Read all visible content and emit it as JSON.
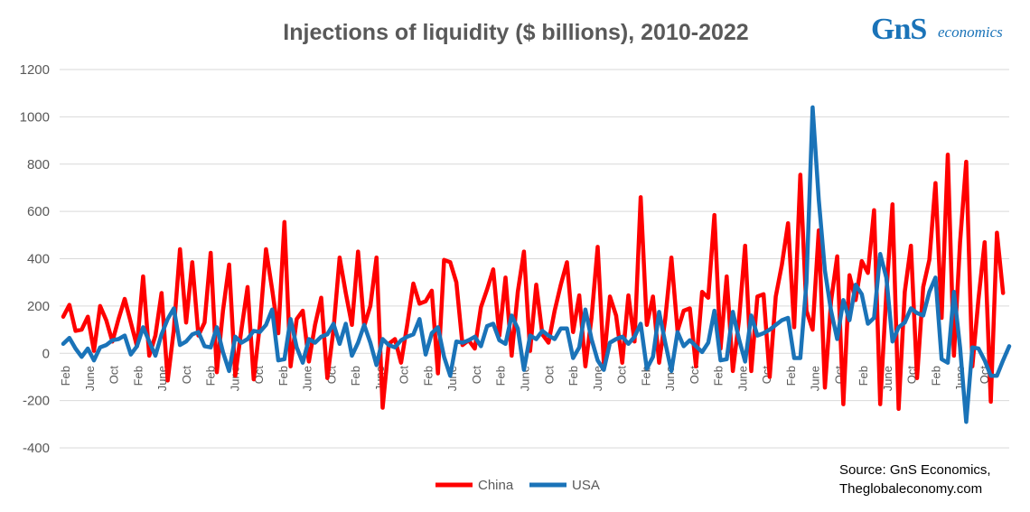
{
  "logo": {
    "mark": "GnS",
    "word": "economics",
    "color": "#1a73b8"
  },
  "source": {
    "line1": "Source: GnS Economics,",
    "line2": "Theglobaleconomy.com"
  },
  "chart_data": {
    "type": "line",
    "title": "Injections of liquidity ($ billions), 2010-2022",
    "xlabel": "",
    "ylabel": "",
    "ylim": [
      -400,
      1200
    ],
    "yticks": [
      -400,
      -200,
      0,
      200,
      400,
      600,
      800,
      1000,
      1200
    ],
    "grid": true,
    "legend_position": "bottom-center",
    "x_tick_labels": [
      "Feb",
      "June",
      "Oct",
      "Feb",
      "June",
      "Oct",
      "Feb",
      "June",
      "Oct",
      "Feb",
      "June",
      "Oct",
      "Feb",
      "June",
      "Oct",
      "Feb",
      "June",
      "Oct",
      "Feb",
      "June",
      "Oct",
      "Feb",
      "June",
      "Oct",
      "Feb",
      "June",
      "Oct",
      "Feb",
      "June",
      "Oct",
      "Feb",
      "June",
      "Oct",
      "Feb",
      "June",
      "Oct",
      "Feb",
      "June",
      "Oct"
    ],
    "series": [
      {
        "name": "China",
        "color": "#ff0000",
        "values": [
          155,
          205,
          95,
          100,
          155,
          10,
          200,
          140,
          50,
          145,
          230,
          130,
          30,
          325,
          -10,
          75,
          255,
          -115,
          100,
          440,
          130,
          385,
          75,
          130,
          425,
          -80,
          180,
          375,
          -95,
          100,
          280,
          -110,
          120,
          440,
          270,
          85,
          555,
          -55,
          145,
          180,
          -35,
          120,
          235,
          -105,
          100,
          405,
          255,
          120,
          430,
          115,
          200,
          405,
          -230,
          40,
          60,
          -40,
          120,
          295,
          210,
          220,
          265,
          -85,
          395,
          385,
          300,
          35,
          55,
          20,
          195,
          270,
          355,
          75,
          320,
          -10,
          260,
          430,
          10,
          290,
          80,
          45,
          180,
          290,
          385,
          90,
          245,
          -55,
          150,
          450,
          -40,
          240,
          160,
          -40,
          245,
          50,
          660,
          120,
          240,
          -40,
          145,
          405,
          95,
          180,
          190,
          -55,
          260,
          235,
          585,
          20,
          325,
          -75,
          140,
          455,
          -75,
          240,
          250,
          -100,
          240,
          375,
          550,
          110,
          755,
          180,
          100,
          520,
          -145,
          220,
          410,
          -215,
          330,
          225,
          390,
          340,
          605,
          -215,
          255,
          630,
          -235,
          260,
          455,
          -105,
          280,
          395,
          720,
          150,
          840,
          -10,
          470,
          810,
          -55,
          230,
          470,
          -205,
          510,
          255
        ]
      },
      {
        "name": "USA",
        "color": "#1a73b8",
        "values": [
          40,
          65,
          20,
          -15,
          20,
          -30,
          25,
          35,
          55,
          60,
          75,
          -5,
          30,
          110,
          50,
          -10,
          80,
          145,
          190,
          35,
          50,
          80,
          90,
          30,
          25,
          110,
          5,
          -75,
          70,
          45,
          60,
          95,
          90,
          120,
          185,
          -30,
          -25,
          145,
          25,
          -40,
          60,
          45,
          70,
          80,
          125,
          40,
          125,
          -10,
          45,
          120,
          45,
          -50,
          60,
          35,
          25,
          55,
          70,
          80,
          145,
          -5,
          85,
          110,
          -15,
          -95,
          50,
          45,
          55,
          70,
          30,
          115,
          125,
          55,
          40,
          160,
          105,
          -70,
          75,
          60,
          95,
          75,
          60,
          105,
          105,
          -20,
          25,
          185,
          60,
          -30,
          -70,
          45,
          60,
          70,
          40,
          70,
          125,
          -65,
          -15,
          175,
          45,
          -75,
          90,
          30,
          55,
          30,
          5,
          45,
          180,
          -30,
          -25,
          175,
          60,
          -35,
          160,
          75,
          85,
          100,
          120,
          140,
          150,
          -20,
          -20,
          300,
          1040,
          650,
          350,
          180,
          60,
          225,
          140,
          290,
          250,
          125,
          150,
          420,
          320,
          50,
          110,
          130,
          190,
          170,
          160,
          260,
          320,
          -25,
          -40,
          260,
          25,
          -290,
          25,
          20,
          -30,
          -95,
          -95,
          -30,
          30
        ]
      }
    ]
  }
}
